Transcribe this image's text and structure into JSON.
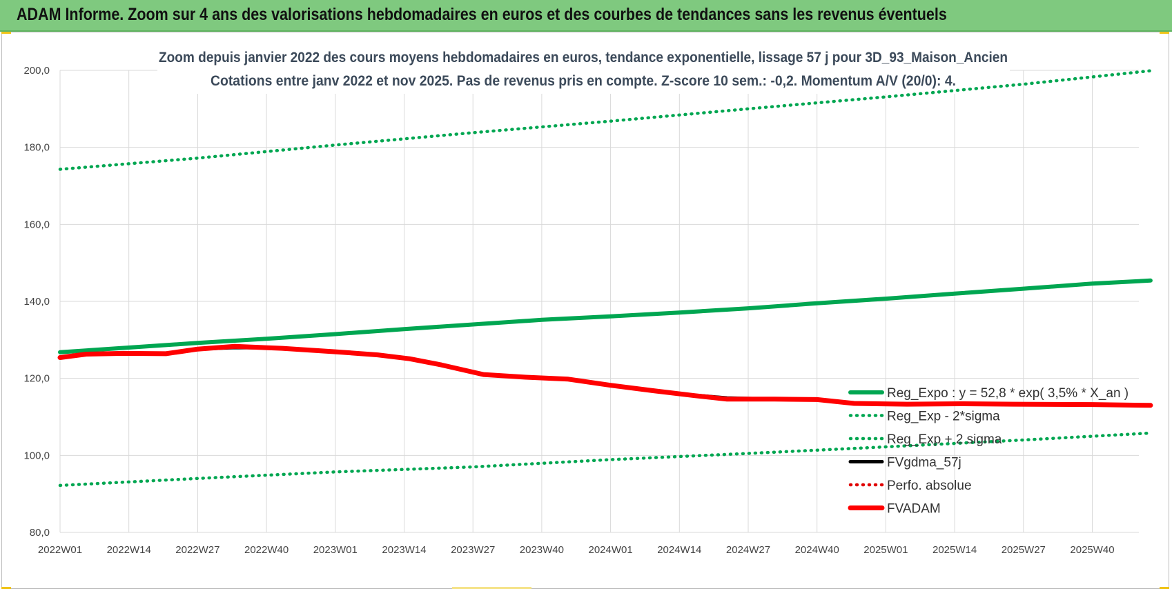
{
  "banner": {
    "title": "ADAM Informe. Zoom sur 4 ans des valorisations hebdomadaires en euros et des courbes de tendances sans les revenus éventuels"
  },
  "chart_data": {
    "type": "line",
    "title": "Zoom depuis janvier 2022 des cours moyens hebdomadaires en euros, tendance exponentielle, lissage 57 j pour 3D_93_Maison_Ancien",
    "subtitle": "Cotations entre janv 2022 et nov 2025. Pas de revenus pris en compte. Z-score 10 sem.: -0,2. Momentum A/V (20/0): 4.",
    "xlabel": "",
    "ylabel": "",
    "x_ticks": [
      "2022W01",
      "2022W14",
      "2022W27",
      "2022W40",
      "2023W01",
      "2023W14",
      "2023W27",
      "2023W40",
      "2024W01",
      "2024W14",
      "2024W27",
      "2024W40",
      "2025W01",
      "2025W14",
      "2025W27",
      "2025W40"
    ],
    "y_ticks": [
      "80,0",
      "100,0",
      "120,0",
      "140,0",
      "160,0",
      "180,0",
      "200,0"
    ],
    "ylim": [
      80,
      200
    ],
    "grid": true,
    "legend_position": "right-lower",
    "series": [
      {
        "name": "Reg_Expo : y = 52,8 * exp( 3,5% * X_an )",
        "color": "#00a651",
        "style": "solid-thick",
        "points": [
          [
            0,
            126.8
          ],
          [
            13,
            128.0
          ],
          [
            26,
            129.2
          ],
          [
            39,
            130.3
          ],
          [
            52,
            131.5
          ],
          [
            65,
            132.8
          ],
          [
            78,
            134.0
          ],
          [
            91,
            135.2
          ],
          [
            104,
            136.1
          ],
          [
            117,
            137.1
          ],
          [
            130,
            138.2
          ],
          [
            143,
            139.5
          ],
          [
            156,
            140.7
          ],
          [
            169,
            142.0
          ],
          [
            182,
            143.3
          ],
          [
            195,
            144.6
          ],
          [
            206,
            145.4
          ]
        ]
      },
      {
        "name": "Reg_Exp - 2*sigma",
        "color": "#00a651",
        "style": "dotted",
        "points": [
          [
            0,
            92.2
          ],
          [
            26,
            94.0
          ],
          [
            52,
            95.7
          ],
          [
            78,
            97.0
          ],
          [
            104,
            98.9
          ],
          [
            130,
            100.5
          ],
          [
            156,
            102.2
          ],
          [
            182,
            104.0
          ],
          [
            206,
            105.8
          ]
        ]
      },
      {
        "name": "Reg_Exp + 2 sigma",
        "color": "#00a651",
        "style": "dotted",
        "points": [
          [
            0,
            174.3
          ],
          [
            26,
            177.2
          ],
          [
            52,
            180.6
          ],
          [
            78,
            183.8
          ],
          [
            104,
            186.8
          ],
          [
            130,
            190.0
          ],
          [
            156,
            193.1
          ],
          [
            182,
            196.4
          ],
          [
            206,
            199.9
          ]
        ]
      },
      {
        "name": "FVgdma_57j",
        "color": "#000000",
        "style": "solid",
        "points": [
          [
            0,
            125.3
          ],
          [
            5,
            126.3
          ],
          [
            12,
            126.4
          ],
          [
            20,
            126.4
          ],
          [
            26,
            127.6
          ],
          [
            33,
            128.0
          ],
          [
            42,
            127.9
          ],
          [
            52,
            126.9
          ],
          [
            60,
            126.1
          ],
          [
            66,
            125.2
          ],
          [
            72,
            123.6
          ],
          [
            80,
            121.1
          ],
          [
            88,
            120.2
          ],
          [
            96,
            119.7
          ],
          [
            104,
            118.1
          ],
          [
            112,
            116.7
          ],
          [
            120,
            115.6
          ],
          [
            126,
            114.9
          ],
          [
            135,
            114.6
          ],
          [
            143,
            114.4
          ],
          [
            150,
            113.6
          ],
          [
            160,
            113.4
          ],
          [
            170,
            113.4
          ],
          [
            180,
            113.2
          ],
          [
            195,
            113.1
          ],
          [
            206,
            113.0
          ]
        ]
      },
      {
        "name": "Perfo. absolue",
        "color": "#e00000",
        "style": "dotted",
        "points": []
      },
      {
        "name": "FVADAM",
        "color": "#ff0000",
        "style": "solid-thick",
        "points": [
          [
            0,
            125.4
          ],
          [
            5,
            126.3
          ],
          [
            12,
            126.5
          ],
          [
            20,
            126.4
          ],
          [
            26,
            127.6
          ],
          [
            33,
            128.3
          ],
          [
            42,
            127.8
          ],
          [
            52,
            126.9
          ],
          [
            60,
            126.1
          ],
          [
            66,
            125.1
          ],
          [
            72,
            123.5
          ],
          [
            80,
            121.0
          ],
          [
            88,
            120.3
          ],
          [
            96,
            119.8
          ],
          [
            104,
            118.2
          ],
          [
            112,
            116.8
          ],
          [
            120,
            115.5
          ],
          [
            126,
            114.6
          ],
          [
            135,
            114.6
          ],
          [
            143,
            114.5
          ],
          [
            150,
            113.5
          ],
          [
            160,
            113.3
          ],
          [
            170,
            113.4
          ],
          [
            180,
            113.3
          ],
          [
            195,
            113.2
          ],
          [
            206,
            113.0
          ]
        ]
      }
    ]
  }
}
